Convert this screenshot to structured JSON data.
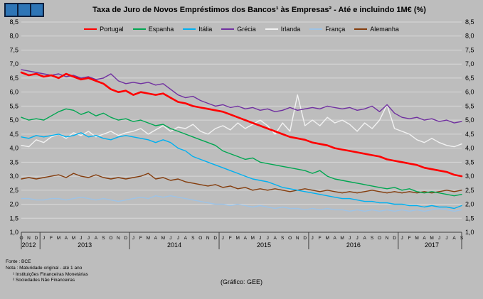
{
  "colors": {
    "background": "#bdbdbd",
    "gridline": "#d9d9d9",
    "axis": "#404040",
    "text": "#000000"
  },
  "footer": {
    "source": "Fonte : BCE",
    "note": "Nota : Maturidade original - até 1 ano",
    "note1": "¹ Instituições Financeiras Monetárias",
    "note2": "² Sociedades Não Financeiras",
    "credit": "(Gráfico: GEE)"
  },
  "chart_data": {
    "type": "line",
    "title": "Taxa de Juro de Novos Empréstimos dos Bancos¹ às Empresas² - Até e incluindo 1M€ (%)",
    "xlabel": "",
    "ylabel": "%",
    "ylim": [
      1.0,
      8.5
    ],
    "ytick_step": 0.5,
    "grid": true,
    "legend_position": "top",
    "months": [
      "O",
      "N",
      "D",
      "J",
      "F",
      "M",
      "A",
      "M",
      "J",
      "J",
      "A",
      "S",
      "O",
      "N",
      "D",
      "J",
      "F",
      "M",
      "A",
      "M",
      "J",
      "J",
      "A",
      "S",
      "O",
      "N",
      "D",
      "J",
      "F",
      "M",
      "A",
      "M",
      "J",
      "J",
      "A",
      "S",
      "O",
      "N",
      "D",
      "J",
      "F",
      "M",
      "A",
      "M",
      "J",
      "J",
      "A",
      "S",
      "O",
      "N",
      "D",
      "J",
      "F",
      "M",
      "A",
      "M",
      "J",
      "J",
      "A",
      "S"
    ],
    "year_groups": [
      {
        "label": "2012",
        "count": 3
      },
      {
        "label": "2013",
        "count": 12
      },
      {
        "label": "2014",
        "count": 12
      },
      {
        "label": "2015",
        "count": 12
      },
      {
        "label": "2016",
        "count": 12
      },
      {
        "label": "2017",
        "count": 9
      }
    ],
    "series": [
      {
        "name": "Portugal",
        "color": "#ff0000",
        "width": 2.6,
        "values": [
          6.7,
          6.6,
          6.65,
          6.55,
          6.6,
          6.5,
          6.65,
          6.55,
          6.45,
          6.5,
          6.4,
          6.3,
          6.1,
          6.0,
          6.05,
          5.9,
          6.0,
          5.95,
          5.9,
          5.95,
          5.8,
          5.65,
          5.6,
          5.5,
          5.45,
          5.4,
          5.35,
          5.3,
          5.2,
          5.1,
          5.0,
          4.9,
          4.8,
          4.7,
          4.6,
          4.5,
          4.4,
          4.35,
          4.3,
          4.2,
          4.15,
          4.1,
          4.0,
          3.95,
          3.9,
          3.85,
          3.8,
          3.75,
          3.7,
          3.6,
          3.55,
          3.5,
          3.45,
          3.4,
          3.3,
          3.25,
          3.2,
          3.15,
          3.05,
          3.0
        ]
      },
      {
        "name": "Espanha",
        "color": "#00a651",
        "width": 1.4,
        "values": [
          5.1,
          5.0,
          5.05,
          5.0,
          5.15,
          5.3,
          5.4,
          5.35,
          5.2,
          5.3,
          5.15,
          5.25,
          5.1,
          5.0,
          5.05,
          4.95,
          5.0,
          4.9,
          4.8,
          4.85,
          4.7,
          4.6,
          4.5,
          4.4,
          4.3,
          4.2,
          4.1,
          3.9,
          3.8,
          3.7,
          3.6,
          3.65,
          3.5,
          3.45,
          3.4,
          3.35,
          3.3,
          3.25,
          3.2,
          3.1,
          3.2,
          3.0,
          2.9,
          2.85,
          2.8,
          2.75,
          2.7,
          2.65,
          2.6,
          2.55,
          2.6,
          2.5,
          2.55,
          2.45,
          2.4,
          2.45,
          2.4,
          2.35,
          2.3,
          2.35
        ]
      },
      {
        "name": "Itália",
        "color": "#00b0f0",
        "width": 1.4,
        "values": [
          4.4,
          4.35,
          4.45,
          4.4,
          4.45,
          4.5,
          4.4,
          4.45,
          4.55,
          4.4,
          4.45,
          4.35,
          4.3,
          4.4,
          4.45,
          4.4,
          4.35,
          4.3,
          4.2,
          4.3,
          4.2,
          4.0,
          3.9,
          3.7,
          3.6,
          3.5,
          3.4,
          3.3,
          3.2,
          3.1,
          3.0,
          2.9,
          2.85,
          2.8,
          2.7,
          2.6,
          2.55,
          2.5,
          2.45,
          2.4,
          2.35,
          2.3,
          2.25,
          2.2,
          2.2,
          2.15,
          2.1,
          2.1,
          2.05,
          2.05,
          2.0,
          2.0,
          1.95,
          1.95,
          1.9,
          1.95,
          1.9,
          1.9,
          1.85,
          1.95
        ]
      },
      {
        "name": "Grécia",
        "color": "#7030a0",
        "width": 1.4,
        "values": [
          6.8,
          6.75,
          6.7,
          6.65,
          6.6,
          6.65,
          6.55,
          6.6,
          6.5,
          6.55,
          6.45,
          6.5,
          6.65,
          6.4,
          6.3,
          6.35,
          6.3,
          6.35,
          6.25,
          6.3,
          6.1,
          5.9,
          5.8,
          5.85,
          5.7,
          5.6,
          5.5,
          5.55,
          5.45,
          5.5,
          5.4,
          5.45,
          5.35,
          5.4,
          5.3,
          5.35,
          5.45,
          5.35,
          5.4,
          5.45,
          5.4,
          5.5,
          5.45,
          5.4,
          5.45,
          5.35,
          5.4,
          5.5,
          5.3,
          5.55,
          5.25,
          5.1,
          5.05,
          5.1,
          5.0,
          5.05,
          4.95,
          5.0,
          4.9,
          4.95
        ]
      },
      {
        "name": "Irlanda",
        "color": "#f2f2f2",
        "width": 1.4,
        "values": [
          4.1,
          4.05,
          4.3,
          4.2,
          4.4,
          4.5,
          4.35,
          4.55,
          4.45,
          4.6,
          4.4,
          4.5,
          4.6,
          4.45,
          4.55,
          4.6,
          4.7,
          4.5,
          4.65,
          4.8,
          4.6,
          4.75,
          4.7,
          4.85,
          4.6,
          4.5,
          4.7,
          4.8,
          4.65,
          4.9,
          4.7,
          4.85,
          5.0,
          4.8,
          4.5,
          4.9,
          4.6,
          5.9,
          4.8,
          5.0,
          4.8,
          5.1,
          4.9,
          5.0,
          4.85,
          4.6,
          4.9,
          4.7,
          5.0,
          5.55,
          4.7,
          4.6,
          4.5,
          4.3,
          4.2,
          4.35,
          4.2,
          4.1,
          4.05,
          4.15
        ]
      },
      {
        "name": "França",
        "color": "#9dc3e6",
        "width": 1.4,
        "values": [
          2.2,
          2.2,
          2.15,
          2.15,
          2.2,
          2.2,
          2.15,
          2.2,
          2.25,
          2.2,
          2.15,
          2.2,
          2.15,
          2.1,
          2.15,
          2.2,
          2.25,
          2.2,
          2.3,
          2.25,
          2.3,
          2.25,
          2.2,
          2.15,
          2.1,
          2.05,
          2.0,
          2.0,
          1.95,
          2.0,
          1.95,
          1.9,
          1.95,
          1.9,
          1.85,
          1.9,
          1.85,
          1.85,
          1.8,
          1.85,
          1.8,
          1.85,
          1.8,
          1.8,
          1.75,
          1.8,
          1.75,
          1.8,
          1.75,
          1.8,
          1.75,
          1.8,
          1.75,
          1.8,
          1.75,
          1.8,
          1.85,
          1.8,
          1.75,
          1.8
        ]
      },
      {
        "name": "Alemanha",
        "color": "#843c0c",
        "width": 1.4,
        "values": [
          2.9,
          2.95,
          2.9,
          2.95,
          3.0,
          3.05,
          2.95,
          3.1,
          3.0,
          2.95,
          3.05,
          2.95,
          2.9,
          2.95,
          2.9,
          2.95,
          3.0,
          3.1,
          2.9,
          2.95,
          2.85,
          2.9,
          2.8,
          2.75,
          2.7,
          2.65,
          2.7,
          2.6,
          2.65,
          2.55,
          2.6,
          2.5,
          2.55,
          2.5,
          2.55,
          2.5,
          2.45,
          2.5,
          2.55,
          2.5,
          2.45,
          2.5,
          2.45,
          2.4,
          2.45,
          2.4,
          2.45,
          2.5,
          2.45,
          2.4,
          2.45,
          2.4,
          2.45,
          2.4,
          2.45,
          2.4,
          2.45,
          2.5,
          2.45,
          2.5
        ]
      }
    ]
  }
}
